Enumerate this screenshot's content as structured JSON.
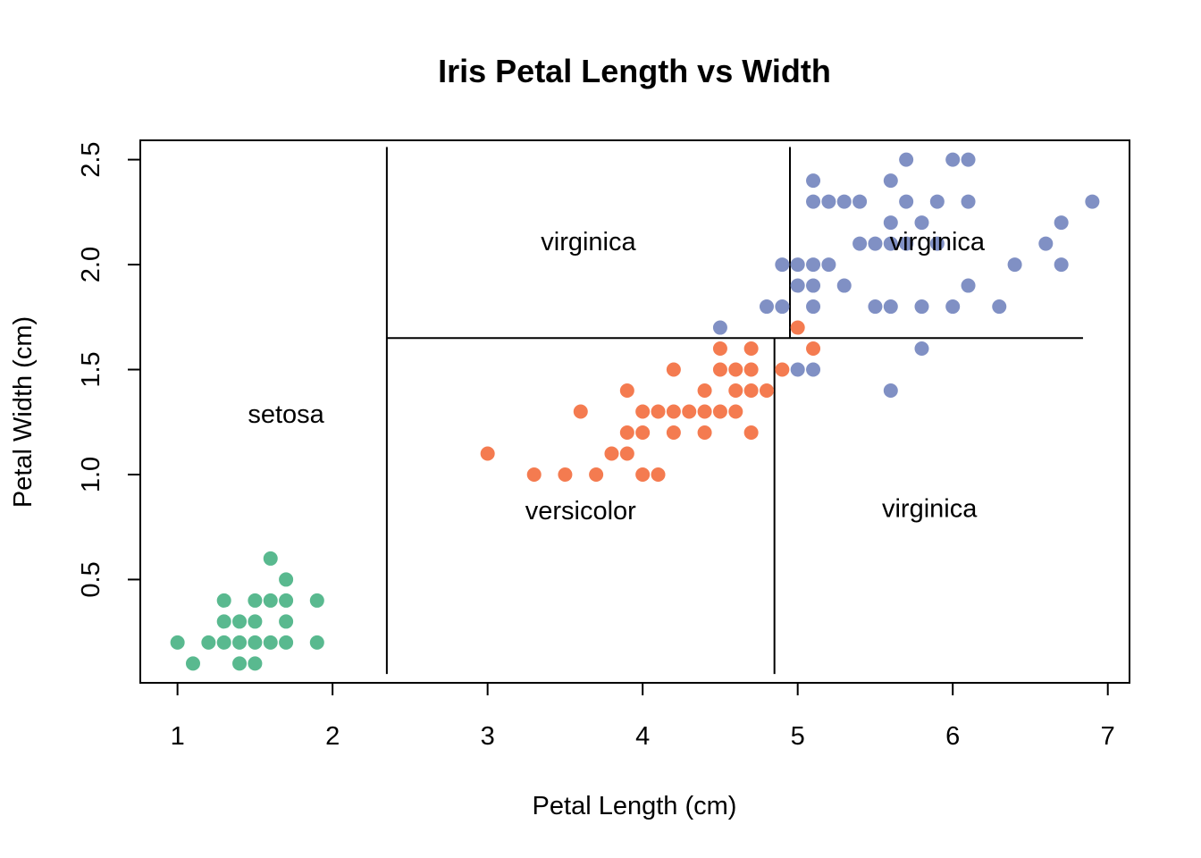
{
  "chart_data": {
    "type": "scatter",
    "title": "Iris Petal Length vs Width",
    "xlabel": "Petal Length (cm)",
    "ylabel": "Petal Width (cm)",
    "xlim": [
      0.76,
      7.14
    ],
    "ylim": [
      0.008,
      2.592
    ],
    "xticks": [
      1,
      2,
      3,
      4,
      5,
      6,
      7
    ],
    "xtick_labels": [
      "1",
      "2",
      "3",
      "4",
      "5",
      "6",
      "7"
    ],
    "yticks": [
      0.5,
      1.0,
      1.5,
      2.0,
      2.5
    ],
    "ytick_labels": [
      "0.5",
      "1.0",
      "1.5",
      "2.0",
      "2.5"
    ],
    "grid": false,
    "legend": "none",
    "series": [
      {
        "color": "#59B98F",
        "points": [
          [
            1.0,
            0.2
          ],
          [
            1.1,
            0.1
          ],
          [
            1.2,
            0.2
          ],
          [
            1.3,
            0.2
          ],
          [
            1.3,
            0.3
          ],
          [
            1.3,
            0.4
          ],
          [
            1.4,
            0.1
          ],
          [
            1.4,
            0.2
          ],
          [
            1.4,
            0.3
          ],
          [
            1.5,
            0.1
          ],
          [
            1.5,
            0.2
          ],
          [
            1.5,
            0.3
          ],
          [
            1.5,
            0.4
          ],
          [
            1.6,
            0.2
          ],
          [
            1.6,
            0.4
          ],
          [
            1.6,
            0.6
          ],
          [
            1.7,
            0.2
          ],
          [
            1.7,
            0.3
          ],
          [
            1.7,
            0.4
          ],
          [
            1.7,
            0.5
          ],
          [
            1.9,
            0.2
          ],
          [
            1.9,
            0.4
          ]
        ]
      },
      {
        "color": "#F47B50",
        "points": [
          [
            3.0,
            1.1
          ],
          [
            3.3,
            1.0
          ],
          [
            3.5,
            1.0
          ],
          [
            3.6,
            1.3
          ],
          [
            3.7,
            1.0
          ],
          [
            3.8,
            1.1
          ],
          [
            3.9,
            1.1
          ],
          [
            3.9,
            1.2
          ],
          [
            3.9,
            1.4
          ],
          [
            4.0,
            1.0
          ],
          [
            4.0,
            1.2
          ],
          [
            4.0,
            1.3
          ],
          [
            4.1,
            1.0
          ],
          [
            4.1,
            1.3
          ],
          [
            4.2,
            1.2
          ],
          [
            4.2,
            1.3
          ],
          [
            4.2,
            1.5
          ],
          [
            4.3,
            1.3
          ],
          [
            4.4,
            1.2
          ],
          [
            4.4,
            1.3
          ],
          [
            4.4,
            1.4
          ],
          [
            4.5,
            1.3
          ],
          [
            4.5,
            1.5
          ],
          [
            4.5,
            1.6
          ],
          [
            4.6,
            1.3
          ],
          [
            4.6,
            1.4
          ],
          [
            4.6,
            1.5
          ],
          [
            4.7,
            1.2
          ],
          [
            4.7,
            1.4
          ],
          [
            4.7,
            1.5
          ],
          [
            4.7,
            1.6
          ],
          [
            4.8,
            1.4
          ],
          [
            4.9,
            1.5
          ],
          [
            5.0,
            1.7
          ],
          [
            5.1,
            1.6
          ]
        ]
      },
      {
        "color": "#8090C4",
        "points": [
          [
            4.5,
            1.7
          ],
          [
            4.8,
            1.8
          ],
          [
            4.9,
            1.8
          ],
          [
            4.9,
            2.0
          ],
          [
            5.0,
            1.5
          ],
          [
            5.0,
            1.9
          ],
          [
            5.0,
            2.0
          ],
          [
            5.1,
            1.5
          ],
          [
            5.1,
            1.8
          ],
          [
            5.1,
            1.9
          ],
          [
            5.1,
            2.0
          ],
          [
            5.1,
            2.3
          ],
          [
            5.1,
            2.4
          ],
          [
            5.2,
            2.0
          ],
          [
            5.2,
            2.3
          ],
          [
            5.3,
            1.9
          ],
          [
            5.3,
            2.3
          ],
          [
            5.4,
            2.1
          ],
          [
            5.4,
            2.3
          ],
          [
            5.5,
            1.8
          ],
          [
            5.5,
            2.1
          ],
          [
            5.6,
            1.4
          ],
          [
            5.6,
            1.8
          ],
          [
            5.6,
            2.1
          ],
          [
            5.6,
            2.2
          ],
          [
            5.6,
            2.4
          ],
          [
            5.7,
            2.1
          ],
          [
            5.7,
            2.3
          ],
          [
            5.7,
            2.5
          ],
          [
            5.8,
            1.6
          ],
          [
            5.8,
            1.8
          ],
          [
            5.8,
            2.2
          ],
          [
            5.9,
            2.1
          ],
          [
            5.9,
            2.3
          ],
          [
            6.0,
            1.8
          ],
          [
            6.0,
            2.5
          ],
          [
            6.1,
            1.9
          ],
          [
            6.1,
            2.3
          ],
          [
            6.1,
            2.5
          ],
          [
            6.3,
            1.8
          ],
          [
            6.4,
            2.0
          ],
          [
            6.6,
            2.1
          ],
          [
            6.7,
            2.0
          ],
          [
            6.7,
            2.2
          ],
          [
            6.9,
            2.3
          ]
        ]
      }
    ],
    "partition_lines": [
      {
        "orientation": "vertical",
        "x": 2.35,
        "y_range": [
          0.05,
          2.56
        ]
      },
      {
        "orientation": "horizontal",
        "y": 1.65,
        "x_range": [
          2.35,
          6.84
        ]
      },
      {
        "orientation": "vertical",
        "x": 4.85,
        "y_range": [
          0.05,
          1.65
        ]
      },
      {
        "orientation": "vertical",
        "x": 4.95,
        "y_range": [
          1.65,
          2.56
        ]
      }
    ],
    "annotations": [
      {
        "text": "setosa",
        "x": 1.7,
        "y": 1.28
      },
      {
        "text": "virginica",
        "x": 3.65,
        "y": 2.1
      },
      {
        "text": "virginica",
        "x": 5.9,
        "y": 2.1
      },
      {
        "text": "versicolor",
        "x": 3.6,
        "y": 0.82
      },
      {
        "text": "virginica",
        "x": 5.85,
        "y": 0.83
      }
    ]
  }
}
